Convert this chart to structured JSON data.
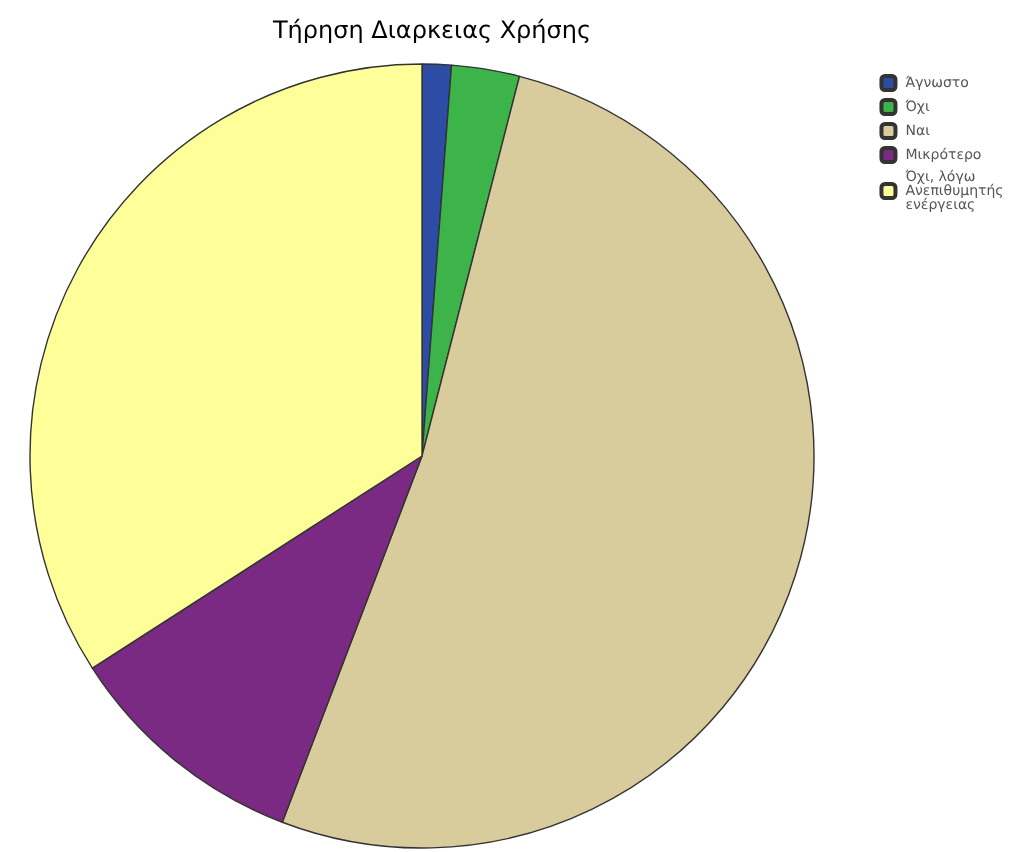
{
  "chart_data": {
    "type": "pie",
    "title": "Τήρηση Διαρκειας Χρήσης",
    "categories": [
      "Άγνωστο",
      "Όχι",
      "Ναι",
      "Μικρότερο",
      "Όχι, λόγω Ανεπιθυμητής ενέργειας"
    ],
    "values": [
      1.2,
      2.8,
      51.8,
      10.1,
      34.1
    ],
    "colors": [
      "#2c4ca6",
      "#3cb44a",
      "#d8cc9c",
      "#7a2a82",
      "#ffff99"
    ],
    "legend": "top right"
  }
}
